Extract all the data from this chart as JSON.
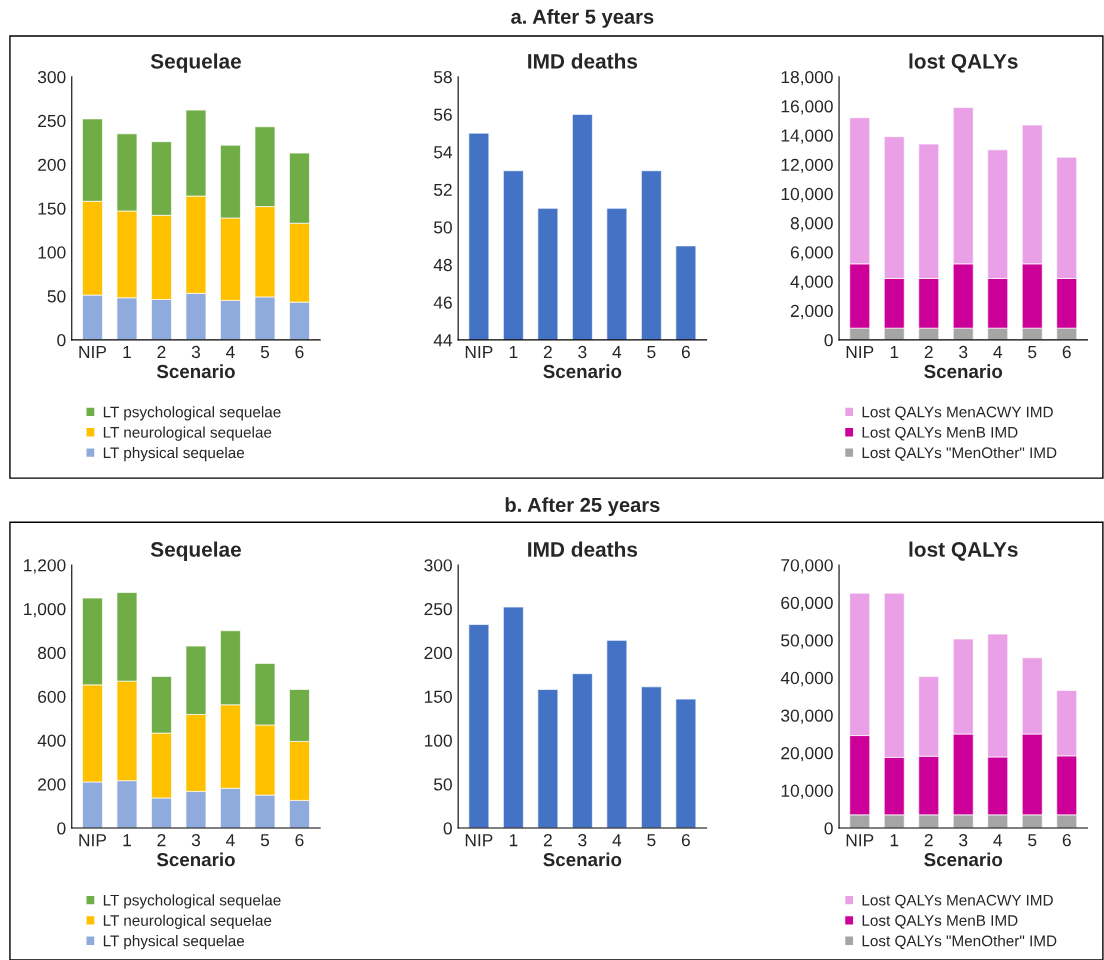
{
  "chart_data": [
    {
      "type": "bar",
      "title": "Sequelae",
      "xlabel": "Scenario",
      "stacked": true,
      "legend": "bottom",
      "categories": [
        "NIP",
        "1",
        "2",
        "3",
        "4",
        "5",
        "6"
      ],
      "series": [
        {
          "name": "LT physical sequelae",
          "color": "#8faadc",
          "values": [
            51,
            48,
            46,
            53,
            45,
            49,
            43
          ]
        },
        {
          "name": "LT neurological sequelae",
          "color": "#ffc000",
          "values": [
            107,
            99,
            96,
            111,
            94,
            103,
            90
          ]
        },
        {
          "name": "LT psychological sequelae",
          "color": "#70ad47",
          "values": [
            94,
            88,
            84,
            98,
            83,
            91,
            80
          ]
        }
      ],
      "ylim": [
        0,
        300
      ],
      "yticks": [
        0,
        50,
        100,
        150,
        200,
        250,
        300
      ]
    },
    {
      "type": "bar",
      "title": "IMD deaths",
      "xlabel": "Scenario",
      "annotations": [
        "a. After 5 years"
      ],
      "categories": [
        "NIP",
        "1",
        "2",
        "3",
        "4",
        "5",
        "6"
      ],
      "series": [
        {
          "color": "#4472c4",
          "values": [
            55,
            53,
            51,
            56,
            51,
            53,
            49
          ]
        }
      ],
      "ylim": [
        44,
        58
      ],
      "yticks": [
        44,
        46,
        48,
        50,
        52,
        54,
        56,
        58
      ]
    },
    {
      "type": "bar",
      "title": "lost QALYs",
      "xlabel": "Scenario",
      "stacked": true,
      "legend": "bottom",
      "categories": [
        "NIP",
        "1",
        "2",
        "3",
        "4",
        "5",
        "6"
      ],
      "series": [
        {
          "name": "Lost QALYs \"MenOther\" IMD",
          "color": "#a5a5a5",
          "values": [
            800,
            800,
            800,
            800,
            800,
            800,
            800
          ]
        },
        {
          "name": "Lost QALYs MenB IMD",
          "color": "#cc0099",
          "values": [
            4400,
            3400,
            3400,
            4400,
            3400,
            4400,
            3400
          ]
        },
        {
          "name": "Lost QALYs MenACWY IMD",
          "color": "#eaa0e6",
          "values": [
            10000,
            9700,
            9200,
            10700,
            8800,
            9500,
            8300
          ]
        }
      ],
      "ylim": [
        0,
        18000
      ],
      "yticks": [
        0,
        {
          "value": 2000,
          "label": "2,000"
        },
        {
          "value": 4000,
          "label": "4,000"
        },
        {
          "value": 6000,
          "label": "6,000"
        },
        {
          "value": 8000,
          "label": "8,000"
        },
        {
          "value": 10000,
          "label": "10,000"
        },
        {
          "value": 12000,
          "label": "12,000"
        },
        {
          "value": 14000,
          "label": "14,000"
        },
        {
          "value": 16000,
          "label": "16,000"
        },
        {
          "value": 18000,
          "label": "18,000"
        }
      ]
    },
    {
      "type": "bar",
      "title": "Sequelae",
      "xlabel": "Scenario",
      "stacked": true,
      "legend": "bottom",
      "categories": [
        "NIP",
        "1",
        "2",
        "3",
        "4",
        "5",
        "6"
      ],
      "series": [
        {
          "name": "LT physical sequelae",
          "color": "#8faadc",
          "values": [
            210,
            216,
            137,
            167,
            181,
            150,
            126
          ]
        },
        {
          "name": "LT neurological sequelae",
          "color": "#ffc000",
          "values": [
            443,
            454,
            296,
            351,
            381,
            320,
            269
          ]
        },
        {
          "name": "LT psychological sequelae",
          "color": "#70ad47",
          "values": [
            396,
            404,
            258,
            312,
            338,
            281,
            237
          ]
        }
      ],
      "ylim": [
        0,
        1200
      ],
      "yticks": [
        0,
        200,
        400,
        600,
        800,
        {
          "value": 1000,
          "label": "1,000"
        },
        {
          "value": 1200,
          "label": "1,200"
        }
      ]
    },
    {
      "type": "bar",
      "title": "IMD deaths",
      "xlabel": "Scenario",
      "annotations": [
        "b. After 25 years"
      ],
      "categories": [
        "NIP",
        "1",
        "2",
        "3",
        "4",
        "5",
        "6"
      ],
      "series": [
        {
          "color": "#4472c4",
          "values": [
            232,
            252,
            158,
            176,
            214,
            161,
            147
          ]
        }
      ],
      "ylim": [
        0,
        300
      ],
      "yticks": [
        0,
        50,
        100,
        150,
        200,
        250,
        300
      ]
    },
    {
      "type": "bar",
      "title": "lost QALYs",
      "xlabel": "Scenario",
      "stacked": true,
      "legend": "bottom",
      "categories": [
        "NIP",
        "1",
        "2",
        "3",
        "4",
        "5",
        "6"
      ],
      "series": [
        {
          "name": "Lost QALYs \"MenOther\" IMD",
          "color": "#a5a5a5",
          "values": [
            3500,
            3500,
            3500,
            3500,
            3500,
            3500,
            3500
          ]
        },
        {
          "name": "Lost QALYs MenB IMD",
          "color": "#cc0099",
          "values": [
            21100,
            15300,
            15600,
            21500,
            15400,
            21500,
            15700
          ]
        },
        {
          "name": "Lost QALYs MenACWY IMD",
          "color": "#eaa0e6",
          "values": [
            37900,
            43700,
            21200,
            25300,
            32700,
            20300,
            17400
          ]
        }
      ],
      "ylim": [
        0,
        70000
      ],
      "yticks": [
        0,
        {
          "value": 10000,
          "label": "10,000"
        },
        {
          "value": 20000,
          "label": "20,000"
        },
        {
          "value": 30000,
          "label": "30,000"
        },
        {
          "value": 40000,
          "label": "40,000"
        },
        {
          "value": 50000,
          "label": "50,000"
        },
        {
          "value": 60000,
          "label": "60,000"
        },
        {
          "value": 70000,
          "label": "70,000"
        }
      ]
    }
  ]
}
